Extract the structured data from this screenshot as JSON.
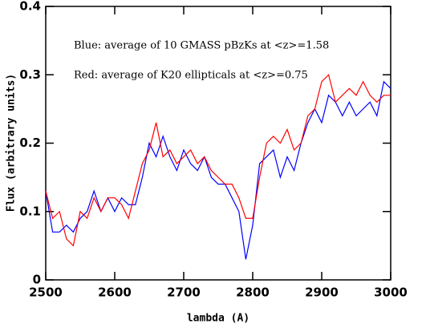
{
  "chart_data": {
    "type": "line",
    "xlabel": "lambda (A)",
    "ylabel": "Flux  (arbitrary units)",
    "x": [
      2500,
      2510,
      2520,
      2530,
      2540,
      2550,
      2560,
      2570,
      2580,
      2590,
      2600,
      2610,
      2620,
      2630,
      2640,
      2650,
      2660,
      2670,
      2680,
      2690,
      2700,
      2710,
      2720,
      2730,
      2740,
      2750,
      2760,
      2770,
      2780,
      2790,
      2800,
      2810,
      2820,
      2830,
      2840,
      2850,
      2860,
      2870,
      2880,
      2890,
      2900,
      2910,
      2920,
      2930,
      2940,
      2950,
      2960,
      2970,
      2980,
      2990,
      3000
    ],
    "series": [
      {
        "name": "Blue: average of 10 GMASS pBzKs at <z>=1.58",
        "color": "#0000ff",
        "values": [
          0.13,
          0.07,
          0.07,
          0.08,
          0.07,
          0.09,
          0.1,
          0.13,
          0.1,
          0.12,
          0.1,
          0.12,
          0.11,
          0.11,
          0.15,
          0.2,
          0.18,
          0.21,
          0.18,
          0.16,
          0.19,
          0.17,
          0.16,
          0.18,
          0.15,
          0.14,
          0.14,
          0.12,
          0.1,
          0.03,
          0.08,
          0.17,
          0.18,
          0.19,
          0.15,
          0.18,
          0.16,
          0.2,
          0.23,
          0.25,
          0.23,
          0.27,
          0.26,
          0.24,
          0.26,
          0.24,
          0.25,
          0.26,
          0.24,
          0.29,
          0.28
        ]
      },
      {
        "name": "Red: average of K20 ellipticals at <z>=0.75",
        "color": "#ff0000",
        "values": [
          0.13,
          0.09,
          0.1,
          0.06,
          0.05,
          0.1,
          0.09,
          0.12,
          0.1,
          0.12,
          0.12,
          0.11,
          0.09,
          0.13,
          0.17,
          0.19,
          0.23,
          0.18,
          0.19,
          0.17,
          0.18,
          0.19,
          0.17,
          0.18,
          0.16,
          0.15,
          0.14,
          0.14,
          0.12,
          0.09,
          0.09,
          0.15,
          0.2,
          0.21,
          0.2,
          0.22,
          0.19,
          0.2,
          0.24,
          0.25,
          0.29,
          0.3,
          0.26,
          0.27,
          0.28,
          0.27,
          0.29,
          0.27,
          0.26,
          0.27,
          0.27
        ]
      }
    ],
    "xlim": [
      2500,
      3000
    ],
    "xticks": [
      2500,
      2600,
      2700,
      2800,
      2900,
      3000
    ],
    "ylim": [
      0,
      0.4
    ],
    "yticks": [
      0,
      0.1,
      0.2,
      0.3,
      0.4
    ]
  }
}
